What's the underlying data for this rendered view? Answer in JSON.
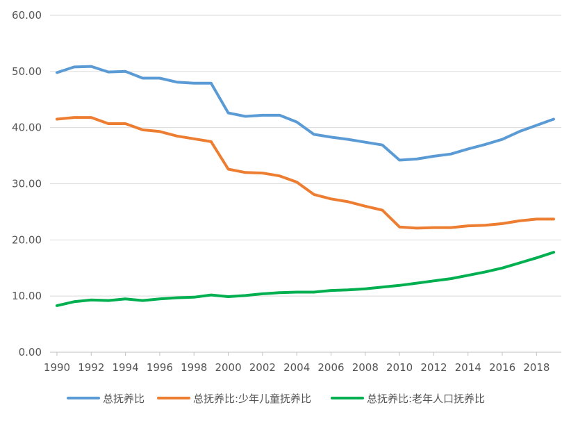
{
  "chart_data": {
    "type": "line",
    "title": "",
    "xlabel": "",
    "ylabel": "",
    "ylim": [
      0,
      60
    ],
    "xlim": [
      1990,
      2019
    ],
    "y_ticks": [
      "0.00",
      "10.00",
      "20.00",
      "30.00",
      "40.00",
      "50.00",
      "60.00"
    ],
    "x_ticks": [
      "1990",
      "1992",
      "1994",
      "1996",
      "1998",
      "2000",
      "2002",
      "2004",
      "2006",
      "2008",
      "2010",
      "2012",
      "2014",
      "2016",
      "2018"
    ],
    "grid": "horizontal",
    "legend_position": "bottom",
    "x": [
      1990,
      1991,
      1992,
      1993,
      1994,
      1995,
      1996,
      1997,
      1998,
      1999,
      2000,
      2001,
      2002,
      2003,
      2004,
      2005,
      2006,
      2007,
      2008,
      2009,
      2010,
      2011,
      2012,
      2013,
      2014,
      2015,
      2016,
      2017,
      2018,
      2019
    ],
    "series": [
      {
        "name": "总抚养比",
        "color": "#5B9BD5",
        "values": [
          49.8,
          50.8,
          50.9,
          49.9,
          50.0,
          48.8,
          48.8,
          48.1,
          47.9,
          47.9,
          42.6,
          42.0,
          42.2,
          42.2,
          41.0,
          38.8,
          38.3,
          37.9,
          37.4,
          36.9,
          34.2,
          34.4,
          34.9,
          35.3,
          36.2,
          37.0,
          37.9,
          39.3,
          40.4,
          41.5
        ]
      },
      {
        "name": "总抚养比:少年儿童抚养比",
        "color": "#ED7D31",
        "values": [
          41.5,
          41.8,
          41.8,
          40.7,
          40.7,
          39.6,
          39.3,
          38.5,
          38.0,
          37.5,
          32.6,
          32.0,
          31.9,
          31.4,
          30.3,
          28.1,
          27.3,
          26.8,
          26.0,
          25.3,
          22.3,
          22.1,
          22.2,
          22.2,
          22.5,
          22.6,
          22.9,
          23.4,
          23.7,
          23.7
        ]
      },
      {
        "name": "总抚养比:老年人口抚养比",
        "color": "#00B050",
        "values": [
          8.3,
          9.0,
          9.3,
          9.2,
          9.5,
          9.2,
          9.5,
          9.7,
          9.8,
          10.2,
          9.9,
          10.1,
          10.4,
          10.6,
          10.7,
          10.7,
          11.0,
          11.1,
          11.3,
          11.6,
          11.9,
          12.3,
          12.7,
          13.1,
          13.7,
          14.3,
          15.0,
          15.9,
          16.8,
          17.8
        ]
      }
    ]
  }
}
